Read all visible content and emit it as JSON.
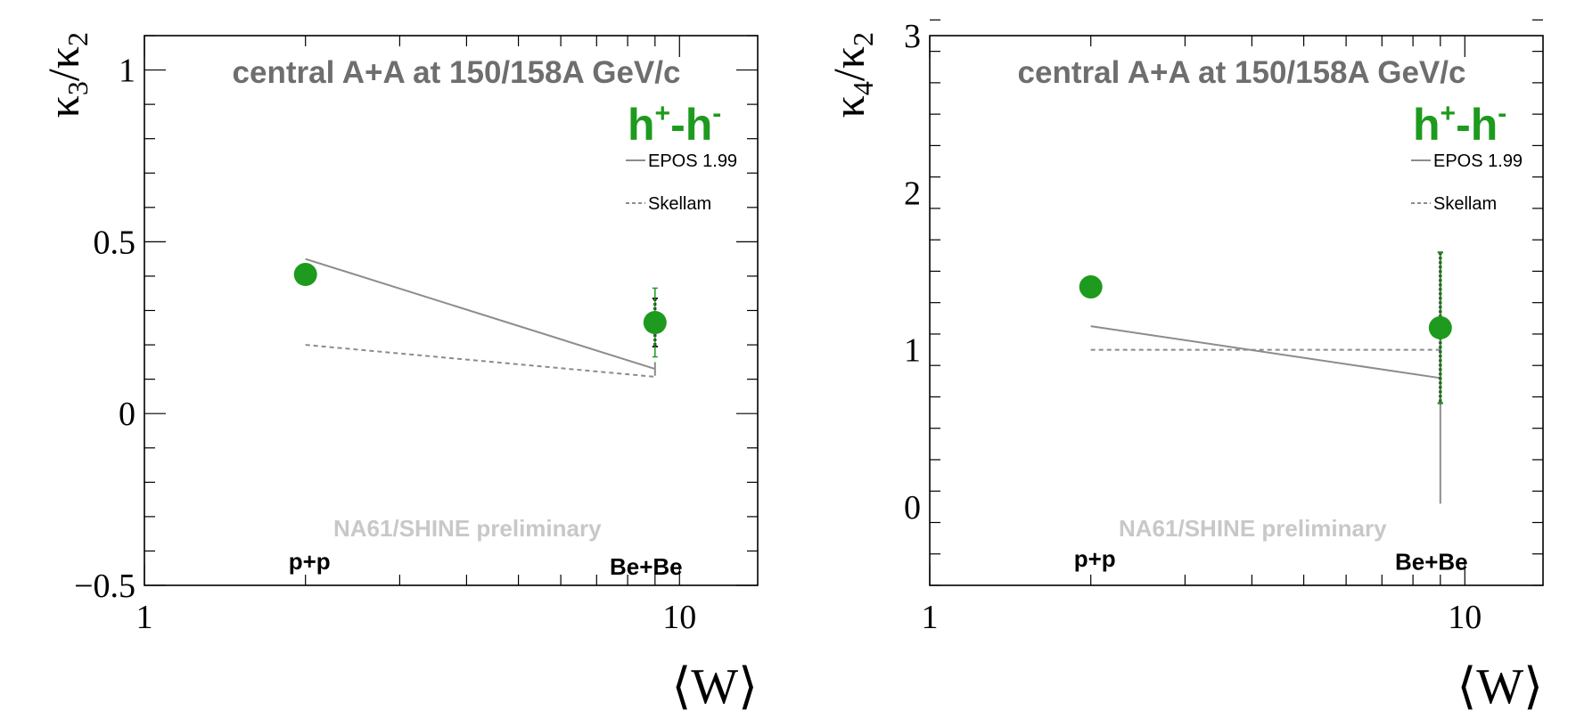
{
  "chart_data": [
    {
      "type": "scatter",
      "title": "central A+A at 150/158A GeV/c",
      "species_label": "h+-h-",
      "species": {
        "base1": "h",
        "sup1": "+",
        "dash": "-",
        "base2": "h",
        "sup2": "-"
      },
      "watermark": "NA61/SHINE preliminary",
      "xlabel": "⟨W⟩",
      "ylabel": {
        "k1": "κ",
        "s1": "3",
        "slash": "/",
        "k2": "κ",
        "s2": "2"
      },
      "xscale": "log",
      "xlim": [
        1,
        14
      ],
      "ylim": [
        -0.5,
        1.1
      ],
      "xticks": [
        {
          "value": 1,
          "label": "1"
        },
        {
          "value": 10,
          "label": "10"
        }
      ],
      "yticks": [
        {
          "value": -0.5,
          "label": "−0.5"
        },
        {
          "value": 0,
          "label": "0"
        },
        {
          "value": 0.5,
          "label": "0.5"
        },
        {
          "value": 1,
          "label": "1"
        }
      ],
      "minor_y_step": 0.1,
      "data_points": [
        {
          "system": "p+p",
          "x": 2.0,
          "y": 0.405,
          "err": 0.008
        },
        {
          "system": "Be+Be",
          "x": 9.0,
          "y": 0.265,
          "err": 0.1,
          "sys_err": 0.07
        }
      ],
      "system_labels": [
        {
          "text": "p+p",
          "x": 2.0,
          "y": -0.43
        },
        {
          "text": "Be+Be",
          "x": 9.0,
          "y": -0.445
        }
      ],
      "series": [
        {
          "name": "EPOS 1.99",
          "style": "solid",
          "points": [
            {
              "x": 2.0,
              "y": 0.45
            },
            {
              "x": 9.0,
              "y": 0.13
            }
          ],
          "end_err": 0.02
        },
        {
          "name": "Skellam",
          "style": "dashed",
          "points": [
            {
              "x": 2.0,
              "y": 0.2
            },
            {
              "x": 9.0,
              "y": 0.107
            }
          ],
          "end_err": 0.0
        }
      ],
      "colors": {
        "data": "#1e9a1e",
        "epos": "#8c8c8c",
        "skellam": "#8c8c8c"
      }
    },
    {
      "type": "scatter",
      "title": "central A+A at 150/158A GeV/c",
      "species_label": "h+-h-",
      "species": {
        "base1": "h",
        "sup1": "+",
        "dash": "-",
        "base2": "h",
        "sup2": "-"
      },
      "watermark": "NA61/SHINE preliminary",
      "xlabel": "⟨W⟩",
      "ylabel": {
        "k1": "κ",
        "s1": "4",
        "slash": "/",
        "k2": "κ",
        "s2": "2"
      },
      "xscale": "log",
      "xlim": [
        1,
        14
      ],
      "ylim": [
        -0.5,
        3.0
      ],
      "xticks": [
        {
          "value": 1,
          "label": "1"
        },
        {
          "value": 10,
          "label": "10"
        }
      ],
      "yticks": [
        {
          "value": 0,
          "label": "0"
        },
        {
          "value": 1,
          "label": "1"
        },
        {
          "value": 2,
          "label": "2"
        },
        {
          "value": 3,
          "label": "3"
        }
      ],
      "minor_y_step": 0.2,
      "data_points": [
        {
          "system": "p+p",
          "x": 2.0,
          "y": 1.4,
          "err": 0.02
        },
        {
          "system": "Be+Be",
          "x": 9.0,
          "y": 1.14,
          "err": 0.48,
          "sys_err": 0.48
        }
      ],
      "system_labels": [
        {
          "text": "p+p",
          "x": 2.0,
          "y": -0.33
        },
        {
          "text": "Be+Be",
          "x": 9.0,
          "y": -0.35
        }
      ],
      "series": [
        {
          "name": "EPOS 1.99",
          "style": "solid",
          "points": [
            {
              "x": 2.0,
              "y": 1.15
            },
            {
              "x": 9.0,
              "y": 0.82
            }
          ],
          "end_err": 0.8
        },
        {
          "name": "Skellam",
          "style": "dashed",
          "points": [
            {
              "x": 2.0,
              "y": 1.0
            },
            {
              "x": 9.0,
              "y": 1.0
            }
          ],
          "end_err": 0.0
        }
      ],
      "colors": {
        "data": "#1e9a1e",
        "epos": "#8c8c8c",
        "skellam": "#8c8c8c"
      }
    }
  ]
}
